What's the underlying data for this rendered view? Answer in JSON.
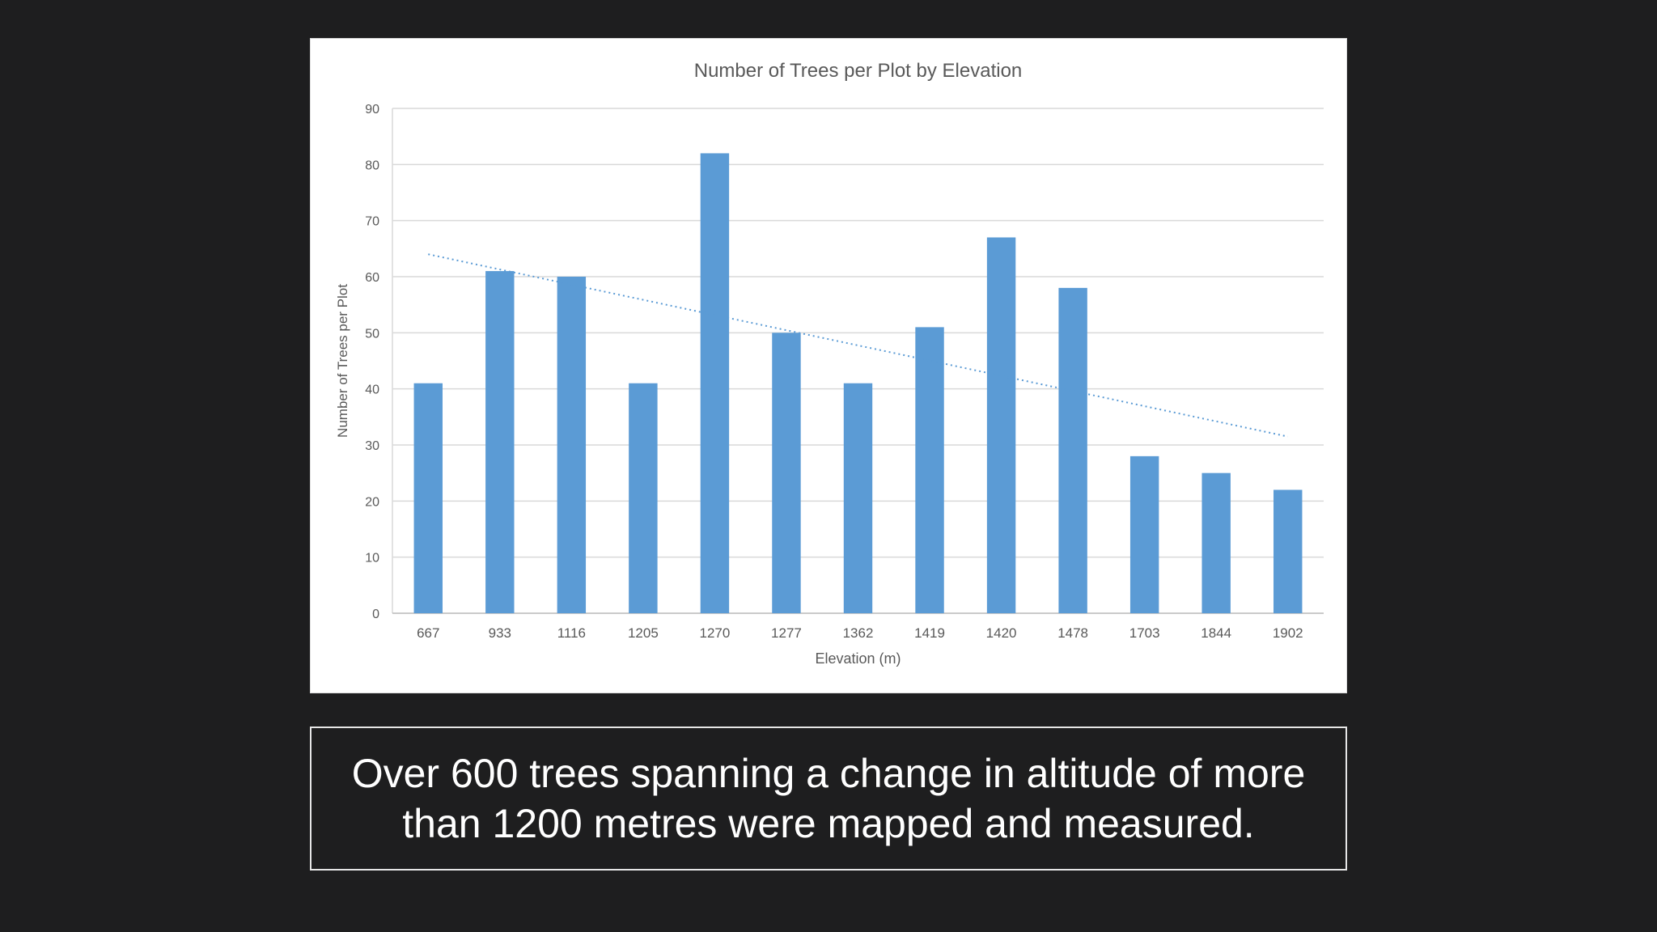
{
  "caption": {
    "line1": "Over 600 trees spanning a change in altitude of more",
    "line2": "than 1200 metres were mapped and measured."
  },
  "colors": {
    "bar": "#5b9bd5",
    "trendline": "#5b9bd5",
    "grid": "#d9d9d9",
    "axis_text": "#595959",
    "background": "#1e1e1f"
  },
  "chart_data": {
    "type": "bar",
    "title": "Number of Trees per Plot by Elevation",
    "xlabel": "Elevation (m)",
    "ylabel": "Number of Trees per Plot",
    "categories": [
      "667",
      "933",
      "1116",
      "1205",
      "1270",
      "1277",
      "1362",
      "1419",
      "1420",
      "1478",
      "1703",
      "1844",
      "1902"
    ],
    "series": [
      {
        "values": [
          41,
          61,
          60,
          41,
          82,
          50,
          41,
          51,
          67,
          58,
          28,
          25,
          22
        ]
      }
    ],
    "trendline": {
      "type": "linear",
      "style": "dotted",
      "start": 64,
      "end": 31.5
    },
    "ylim": [
      0,
      90
    ],
    "yticks": [
      0,
      10,
      20,
      30,
      40,
      50,
      60,
      70,
      80,
      90
    ],
    "grid": true,
    "legend": "none"
  }
}
